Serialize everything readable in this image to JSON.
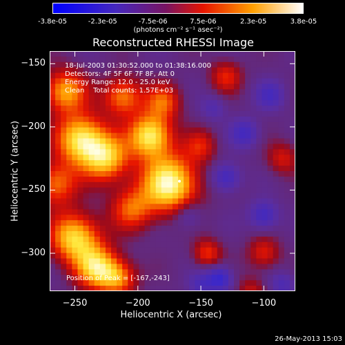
{
  "colorbar": {
    "tick_labels": [
      "-3.8e-05",
      "-2.3e-05",
      "-7.5e-06",
      "7.5e-06",
      "2.3e-05",
      "3.8e-05"
    ],
    "units_label": "(photons cm⁻² s⁻¹ asec⁻²)",
    "range": [
      -3.8e-05,
      3.8e-05
    ]
  },
  "info": {
    "time_range": "18-Jul-2003 01:30:52.000 to 01:38:16.000",
    "detectors": "Detectors: 4F 5F 6F 7F 8F, Att 0",
    "energy_range": "Energy Range: 12.0 - 25.0 keV",
    "method_counts": "Clean    Total counts: 1.57E+03",
    "peak_position": "Position of Peak = [-167,-243]"
  },
  "footer_date": "26-May-2013 15:03",
  "chart_data": {
    "type": "heatmap",
    "title": "Reconstructed RHESSI Image",
    "xlabel": "Heliocentric X (arcsec)",
    "ylabel": "Heliocentric Y (arcsec)",
    "xlim": [
      -270,
      -75
    ],
    "ylim": [
      -330,
      -140
    ],
    "x_ticks": [
      -250,
      -200,
      -150,
      -100
    ],
    "y_ticks": [
      -150,
      -200,
      -250,
      -300
    ],
    "x_tick_labels": [
      "−250",
      "−200",
      "−150",
      "−100"
    ],
    "y_tick_labels": [
      "−150",
      "−200",
      "−250",
      "−300"
    ],
    "colormap": "red-temperature",
    "peak": [
      -167,
      -243
    ],
    "blobs": [
      {
        "x": -175,
        "y": -245,
        "amp": 1.0,
        "sigma": 16
      },
      {
        "x": -190,
        "y": -207,
        "amp": 0.92,
        "sigma": 12
      },
      {
        "x": -245,
        "y": -210,
        "amp": 0.9,
        "sigma": 14
      },
      {
        "x": -225,
        "y": -225,
        "amp": 0.75,
        "sigma": 13
      },
      {
        "x": -250,
        "y": -288,
        "amp": 0.85,
        "sigma": 14
      },
      {
        "x": -232,
        "y": -312,
        "amp": 0.8,
        "sigma": 12
      },
      {
        "x": -258,
        "y": -172,
        "amp": 0.7,
        "sigma": 12
      },
      {
        "x": -212,
        "y": -176,
        "amp": 0.62,
        "sigma": 11
      },
      {
        "x": -265,
        "y": -245,
        "amp": 0.58,
        "sigma": 12
      },
      {
        "x": -205,
        "y": -265,
        "amp": 0.5,
        "sigma": 12
      },
      {
        "x": -180,
        "y": -180,
        "amp": 0.5,
        "sigma": 10
      },
      {
        "x": -215,
        "y": -320,
        "amp": 0.55,
        "sigma": 10
      },
      {
        "x": -145,
        "y": -300,
        "amp": 0.45,
        "sigma": 8
      },
      {
        "x": -130,
        "y": -160,
        "amp": 0.4,
        "sigma": 9
      },
      {
        "x": -100,
        "y": -300,
        "amp": 0.4,
        "sigma": 9
      },
      {
        "x": -85,
        "y": -225,
        "amp": 0.35,
        "sigma": 9
      },
      {
        "x": -150,
        "y": -215,
        "amp": 0.35,
        "sigma": 9
      },
      {
        "x": -110,
        "y": -330,
        "amp": 0.3,
        "sigma": 8
      },
      {
        "x": -135,
        "y": -320,
        "amp": -0.55,
        "sigma": 7
      },
      {
        "x": -130,
        "y": -240,
        "amp": -0.45,
        "sigma": 8
      },
      {
        "x": -100,
        "y": -270,
        "amp": -0.45,
        "sigma": 8
      },
      {
        "x": -115,
        "y": -205,
        "amp": -0.4,
        "sigma": 8
      },
      {
        "x": -95,
        "y": -175,
        "amp": -0.35,
        "sigma": 8
      },
      {
        "x": -160,
        "y": -270,
        "amp": -0.3,
        "sigma": 8
      },
      {
        "x": -150,
        "y": -325,
        "amp": -0.3,
        "sigma": 7
      },
      {
        "x": -85,
        "y": -325,
        "amp": -0.3,
        "sigma": 7
      },
      {
        "x": -140,
        "y": -185,
        "amp": -0.25,
        "sigma": 7
      }
    ]
  }
}
